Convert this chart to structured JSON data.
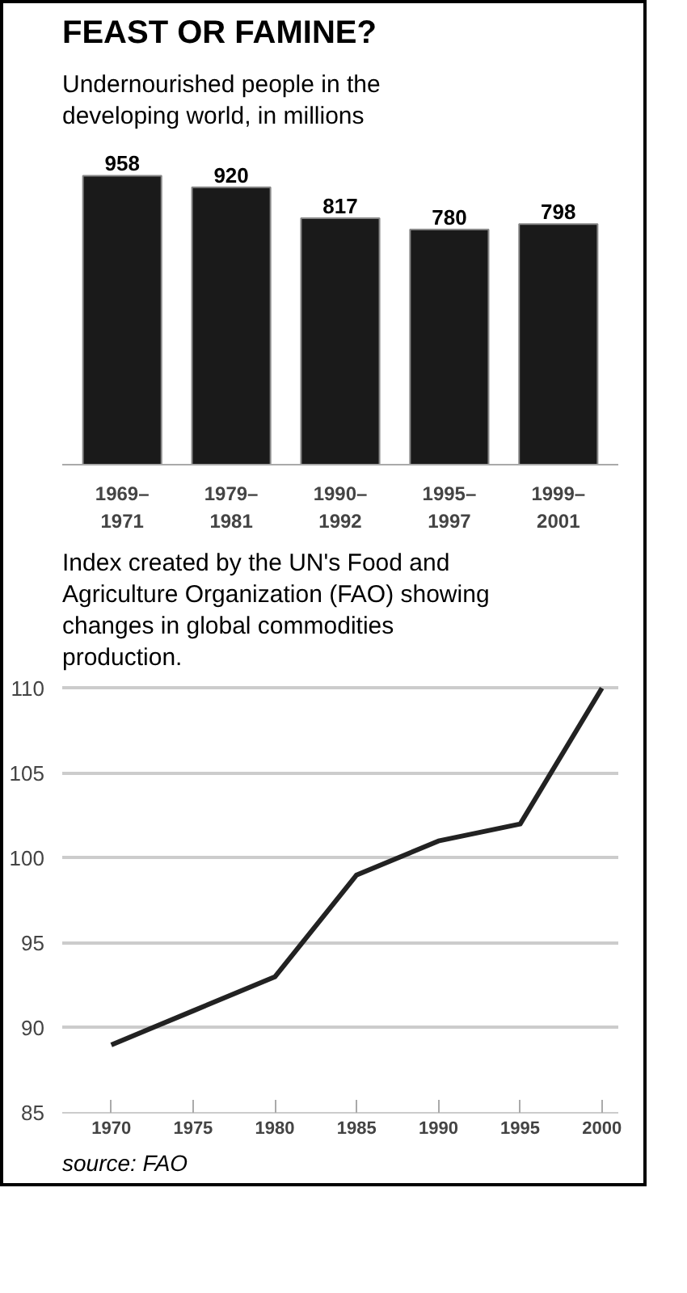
{
  "chart_data": [
    {
      "type": "bar",
      "title": "FEAST OR FAMINE?",
      "subtitle": "Undernourished people in the developing world, in millions",
      "categories": [
        "1969–\n1971",
        "1979–\n1981",
        "1990–\n1992",
        "1995–\n1997",
        "1999–\n2001"
      ],
      "values": [
        958,
        920,
        817,
        780,
        798
      ],
      "color": "#1a1a1a",
      "data_labels": true,
      "grid": false
    },
    {
      "type": "line",
      "title": "Index created by the UN's Food and Agriculture Organization (FAO) showing changes in global commodities production.",
      "x": [
        1970,
        1975,
        1980,
        1985,
        1990,
        1995,
        2000
      ],
      "values": [
        89,
        91,
        93,
        99,
        101,
        102,
        110
      ],
      "color": "#222222",
      "xlim": [
        1967,
        2001
      ],
      "ylim": [
        85,
        110
      ],
      "xticks": [
        1970,
        1975,
        1980,
        1985,
        1990,
        1995,
        2000
      ],
      "yticks": [
        85,
        90,
        95,
        100,
        105,
        110
      ],
      "grid": "y",
      "marker": "none",
      "line_style": "solid",
      "annotations": [
        "source: FAO"
      ]
    }
  ]
}
